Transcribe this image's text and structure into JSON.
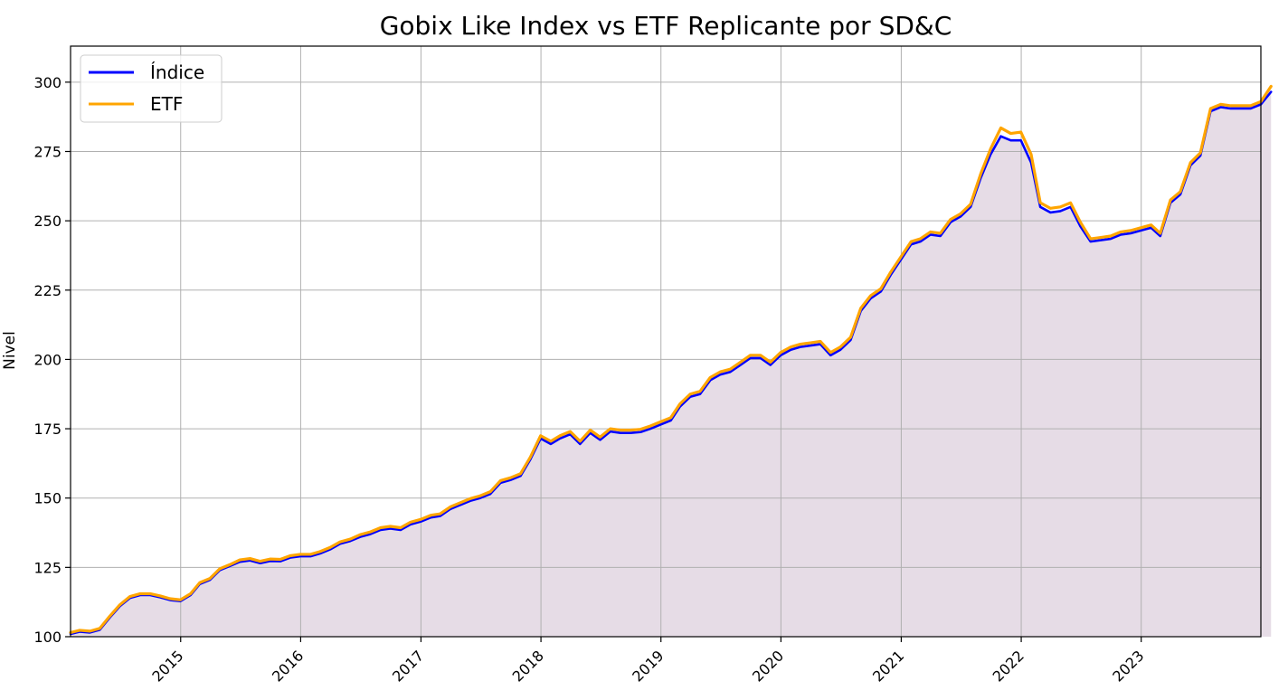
{
  "chart_data": {
    "type": "area",
    "title": "Gobix Like Index vs ETF Replicante por SD&C",
    "xlabel": "",
    "ylabel": "Nivel",
    "x_type": "date",
    "xlim": [
      "2014-01-31",
      "2023-12-31"
    ],
    "ylim": [
      100,
      313
    ],
    "y_ticks": [
      100,
      125,
      150,
      175,
      200,
      225,
      250,
      275,
      300
    ],
    "x_ticks": [
      "2015",
      "2016",
      "2017",
      "2018",
      "2019",
      "2020",
      "2021",
      "2022",
      "2023"
    ],
    "grid": true,
    "legend_position": "top-left",
    "fill_color": "#e6dce6",
    "series": [
      {
        "name": "Índice",
        "color": "#0000ff",
        "values": [
          101.0,
          101.8,
          101.5,
          102.5,
          107.0,
          111.0,
          114.0,
          115.0,
          115.0,
          114.2,
          113.2,
          112.8,
          115.0,
          119.0,
          120.5,
          124.0,
          125.5,
          127.0,
          127.5,
          126.5,
          127.3,
          127.2,
          128.5,
          129.0,
          129.0,
          130.0,
          131.5,
          133.5,
          134.5,
          136.0,
          137.0,
          138.5,
          139.0,
          138.5,
          140.5,
          141.5,
          143.0,
          143.5,
          146.0,
          147.5,
          149.0,
          150.0,
          151.5,
          155.5,
          156.5,
          158.0,
          164.0,
          171.5,
          169.5,
          171.5,
          173.0,
          169.5,
          173.5,
          171.0,
          174.0,
          173.5,
          173.5,
          173.8,
          175.0,
          176.5,
          178.0,
          183.0,
          186.5,
          187.5,
          192.5,
          194.5,
          195.5,
          198.0,
          200.5,
          200.5,
          198.0,
          201.5,
          203.5,
          204.5,
          205.0,
          205.5,
          201.5,
          203.5,
          207.0,
          217.5,
          222.0,
          224.5,
          230.5,
          236.0,
          241.5,
          242.5,
          245.0,
          244.5,
          249.5,
          251.5,
          255.0,
          265.5,
          274.0,
          280.5,
          279.0,
          279.0,
          271.0,
          255.0,
          253.0,
          253.5,
          255.0,
          248.0,
          242.5,
          243.0,
          243.5,
          245.0,
          245.5,
          246.5,
          247.5,
          244.5,
          256.5,
          259.5,
          270.0,
          273.5,
          289.5,
          291.0,
          290.5,
          290.5,
          290.5,
          292.0,
          296.5
        ]
      },
      {
        "name": "ETF",
        "color": "#ffa500",
        "values": [
          101.5,
          102.3,
          102.0,
          103.0,
          107.5,
          111.5,
          114.5,
          115.5,
          115.5,
          114.7,
          113.7,
          113.3,
          115.5,
          119.5,
          121.0,
          124.5,
          126.0,
          127.7,
          128.2,
          127.2,
          128.0,
          127.9,
          129.2,
          129.7,
          129.7,
          130.7,
          132.2,
          134.2,
          135.2,
          136.8,
          137.8,
          139.3,
          139.8,
          139.3,
          141.3,
          142.3,
          143.8,
          144.3,
          146.8,
          148.3,
          149.8,
          150.8,
          152.3,
          156.3,
          157.3,
          158.8,
          164.8,
          172.5,
          170.5,
          172.5,
          174.0,
          170.5,
          174.5,
          172.0,
          175.0,
          174.5,
          174.5,
          174.8,
          176.0,
          177.5,
          179.0,
          184.0,
          187.5,
          188.5,
          193.5,
          195.5,
          196.5,
          199.0,
          201.5,
          201.5,
          199.0,
          202.5,
          204.5,
          205.5,
          206.0,
          206.5,
          202.5,
          204.5,
          208.0,
          218.5,
          223.0,
          225.5,
          231.5,
          237.0,
          242.5,
          243.5,
          246.0,
          245.5,
          250.5,
          252.5,
          256.0,
          267.0,
          276.0,
          283.5,
          281.5,
          282.0,
          274.0,
          256.5,
          254.5,
          255.0,
          256.5,
          249.5,
          243.5,
          244.0,
          244.5,
          246.0,
          246.5,
          247.5,
          248.5,
          245.5,
          257.5,
          260.5,
          271.0,
          274.5,
          290.5,
          292.0,
          291.5,
          291.5,
          291.5,
          293.0,
          298.5
        ]
      }
    ]
  }
}
